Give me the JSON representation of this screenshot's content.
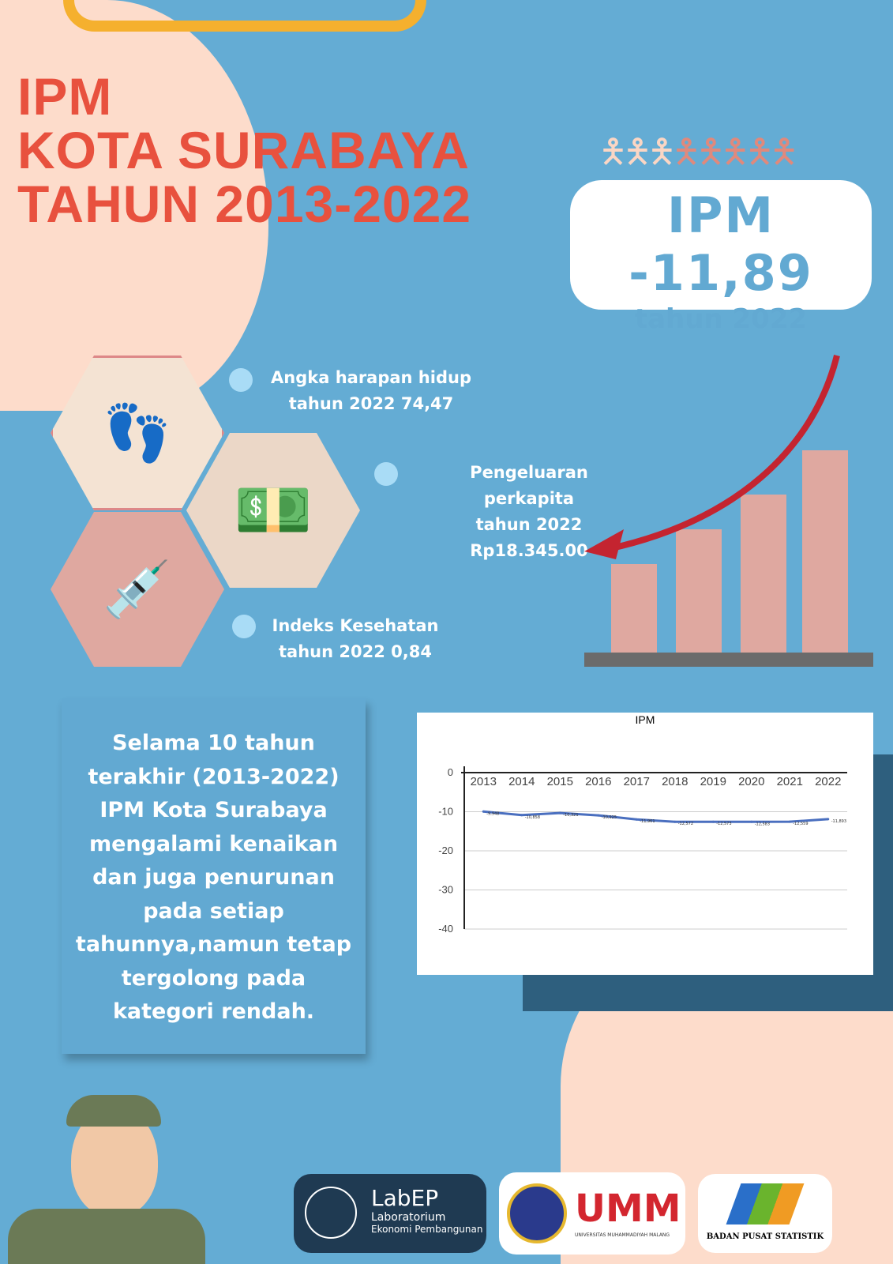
{
  "title": {
    "line1": "IPM",
    "line2": "KOTA SURABAYA",
    "line3": "TAHUN 2013-2022"
  },
  "highlight": {
    "value": "IPM  -11,89",
    "year": "tahun 2022"
  },
  "stats": [
    {
      "line1": "Angka harapan hidup",
      "line2": "tahun 2022  74,47"
    },
    {
      "line1": "Pengeluaran perkapita",
      "line2": "tahun 2022 Rp18.345.00"
    },
    {
      "line1": "Indeks Kesehatan",
      "line2": "tahun 2022 0,84"
    }
  ],
  "summary": "Selama 10 tahun terakhir (2013-2022) IPM Kota Surabaya mengalami kenaikan dan juga penurunan pada setiap tahunnya,namun tetap tergolong pada kategori rendah.",
  "chart_data": {
    "type": "line",
    "title": "IPM",
    "categories": [
      "2013",
      "2014",
      "2015",
      "2016",
      "2017",
      "2018",
      "2019",
      "2020",
      "2021",
      "2022"
    ],
    "values": [
      -9.95,
      -10.86,
      -10.32,
      -10.93,
      -11.96,
      -12.57,
      -12.57,
      -12.58,
      -12.56,
      -11.89
    ],
    "data_labels": [
      "-9,948",
      "-10,858",
      "-10,321",
      "-10,925",
      "-11,961",
      "-12,572",
      "-12,573",
      "-12,583",
      "-12,559",
      "-11,893"
    ],
    "yticks": [
      "0",
      "-10",
      "-20",
      "-30",
      "-40"
    ],
    "ylim": [
      -40,
      0
    ],
    "grid": true,
    "color": "#4a6fbf"
  },
  "logos": {
    "lab_short": "LabEP",
    "lab_name1": "Laboratorium",
    "lab_name2": "Ekonomi Pembangunan",
    "umm": "UMM",
    "umm_sub": "UNIVERSITAS MUHAMMADIYAH MALANG",
    "bps": "BADAN PUSAT STATISTIK"
  },
  "colors": {
    "background": "#64acd4",
    "title": "#e8513e",
    "peach": "#fddccb"
  }
}
